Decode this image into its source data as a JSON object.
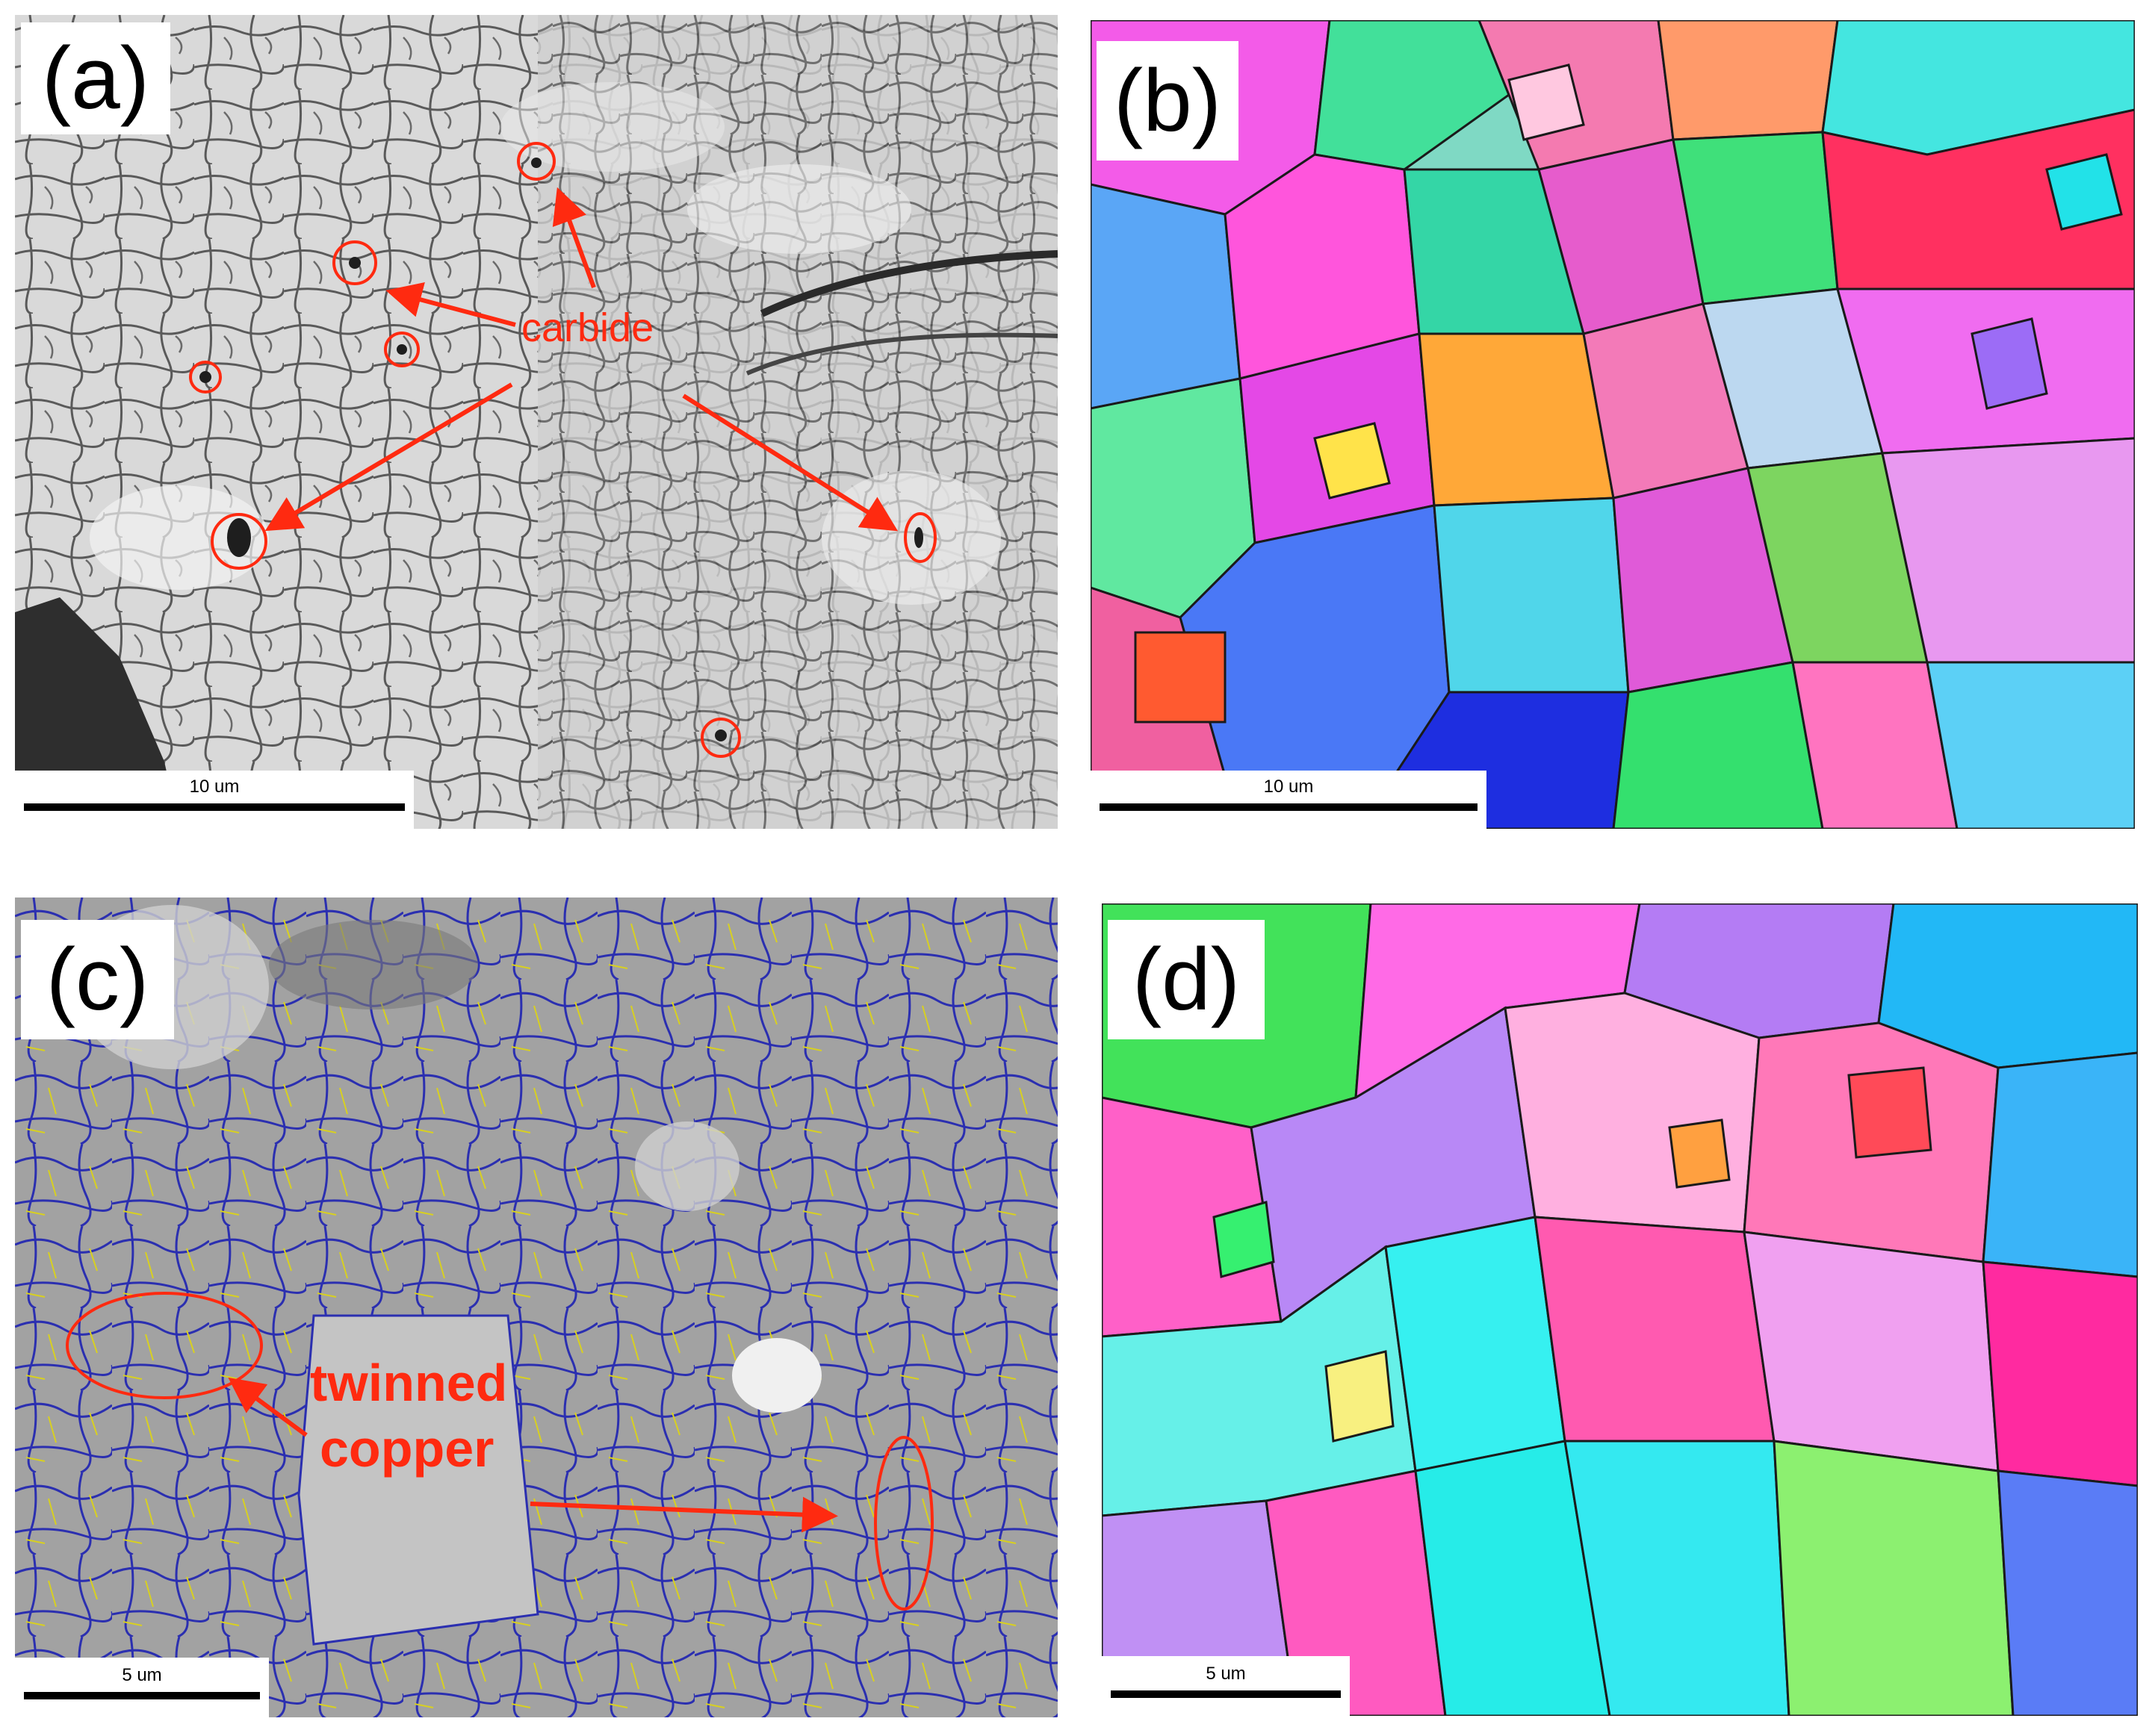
{
  "panels": {
    "a": {
      "label": "(a)",
      "scale": "10 um",
      "annotation": "carbide"
    },
    "b": {
      "label": "(b)",
      "scale": "10 um"
    },
    "c": {
      "label": "(c)",
      "scale": "5 um",
      "annotation_line1": "twinned",
      "annotation_line2": "copper"
    },
    "d": {
      "label": "(d)",
      "scale": "5 um"
    }
  },
  "colors": {
    "annotation": "#ff2a10",
    "grain_boundary_c": "#2b2fb0",
    "twin_boundary_c": "#d8d020"
  }
}
